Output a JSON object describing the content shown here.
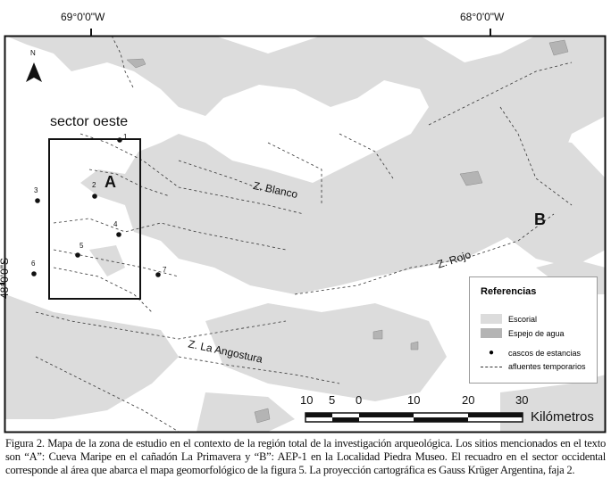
{
  "map": {
    "coordinates": {
      "lon_left": "69°0'0\"W",
      "lon_right": "68°0'0\"W",
      "lat": "48°0'0\"S"
    },
    "north_arrow": "N",
    "inset_label": "sector oeste",
    "sites": [
      {
        "label": "A"
      },
      {
        "label": "B"
      }
    ],
    "estancias": [
      "1",
      "2",
      "3",
      "4",
      "5",
      "6",
      "7"
    ],
    "valleys": [
      "Z. Blanco",
      "Z. Rojo",
      "Z. La Angostura"
    ],
    "colors": {
      "escorial": "#dcdcdc",
      "agua": "#b4b4b4"
    }
  },
  "legend": {
    "title": "Referencias",
    "items": [
      {
        "label": "Escorial",
        "icon": "light-gray-swatch"
      },
      {
        "label": "Espejo de agua",
        "icon": "dark-gray-swatch"
      },
      {
        "label": "cascos de estancias",
        "icon": "dot"
      },
      {
        "label": "afluentes temporarios",
        "icon": "dashed-line"
      }
    ]
  },
  "scale_bar": {
    "ticks": [
      "10",
      "5",
      "0",
      "10",
      "20",
      "30"
    ],
    "unit": "Kilómetros"
  },
  "caption": "Figura 2. Mapa de la zona de estudio en el contexto de la región total de la investigación arqueológica. Los sitios mencionados en el texto son “A”: Cueva Maripe en el cañadón La Primavera y “B”: AEP-1 en la Localidad Piedra Museo. El recuadro en el sector occidental corresponde al área que abarca el mapa geomorfológico de la figura 5. La proyección cartográfica es Gauss Krüger Argentina, faja 2."
}
